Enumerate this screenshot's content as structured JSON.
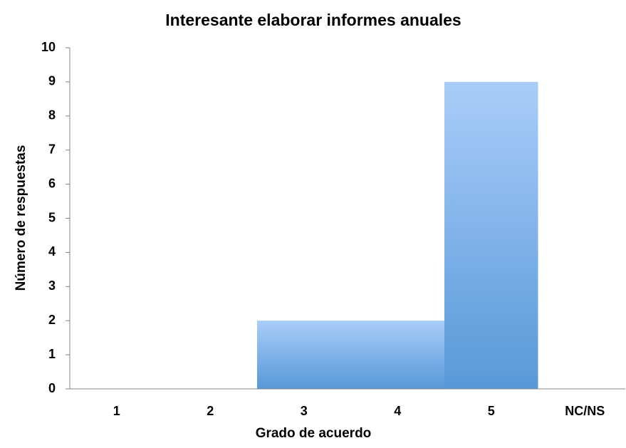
{
  "chart_data": {
    "type": "bar",
    "title": "Interesante elaborar informes anuales",
    "x_label": "Grado de acuerdo",
    "y_label": "Número de respuestas",
    "categories": [
      "1",
      "2",
      "3",
      "4",
      "5",
      "NC/NS"
    ],
    "values": [
      0,
      0,
      2,
      2,
      9,
      0
    ],
    "color": "#5898d8",
    "ylim": [
      0,
      10
    ],
    "yticks": [
      0,
      1,
      2,
      3,
      4,
      5,
      6,
      7,
      8,
      9,
      10
    ],
    "grid": false
  }
}
